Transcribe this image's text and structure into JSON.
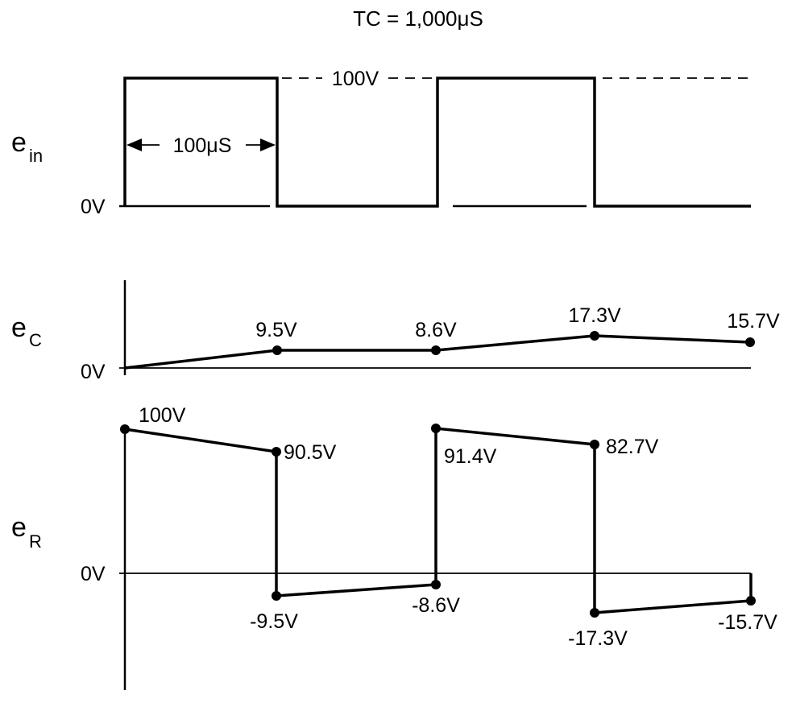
{
  "title": "TC = 1,000μS",
  "ein": {
    "symbol": "e",
    "subscript": "in",
    "zero_label": "0V",
    "amplitude_label": "100V",
    "width_label": "100μS"
  },
  "ec": {
    "symbol": "e",
    "subscript": "C",
    "zero_label": "0V",
    "point_labels": [
      "9.5V",
      "8.6V",
      "17.3V",
      "15.7V"
    ]
  },
  "er": {
    "symbol": "e",
    "subscript": "R",
    "zero_label": "0V",
    "point_labels": [
      "100V",
      "90.5V",
      "91.4V",
      "82.7V",
      "-9.5V",
      "-8.6V",
      "-17.3V",
      "-15.7V"
    ]
  }
}
